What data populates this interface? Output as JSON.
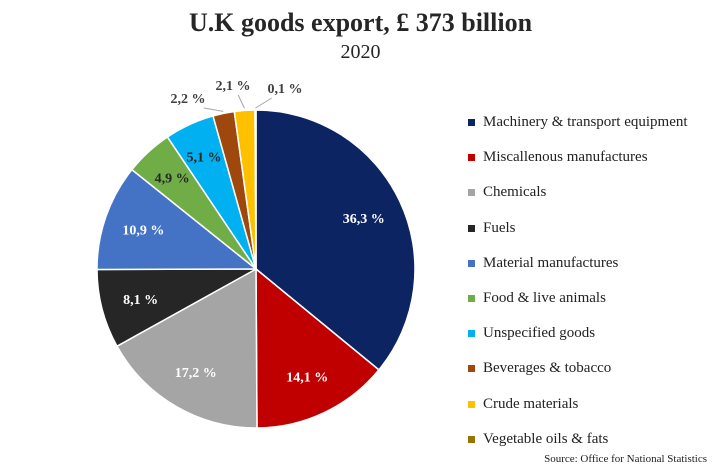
{
  "chart_data": {
    "type": "pie",
    "title": "U.K goods export, £ 373 billion",
    "subtitle": "2020",
    "source": "Source: Office for National Statistics",
    "slices": [
      {
        "label": "Machinery & transport equipment",
        "value": 36.3,
        "display": "36,3 %",
        "color": "#0d2463",
        "label_color": "#ffffff"
      },
      {
        "label": "Miscallenous manufactures",
        "value": 14.1,
        "display": "14,1 %",
        "color": "#c00000",
        "label_color": "#ffffff"
      },
      {
        "label": "Chemicals",
        "value": 17.2,
        "display": "17,2 %",
        "color": "#a5a5a5",
        "label_color": "#ffffff"
      },
      {
        "label": "Fuels",
        "value": 8.1,
        "display": "8,1 %",
        "color": "#262626",
        "label_color": "#ffffff"
      },
      {
        "label": "Material manufactures",
        "value": 10.9,
        "display": "10,9 %",
        "color": "#4472c4",
        "label_color": "#ffffff"
      },
      {
        "label": "Food & live animals",
        "value": 4.9,
        "display": "4,9 %",
        "color": "#70ad47",
        "label_color": "#262626"
      },
      {
        "label": "Unspecified goods",
        "value": 5.1,
        "display": "5,1 %",
        "color": "#00b0f0",
        "label_color": "#262626"
      },
      {
        "label": "Beverages & tobacco",
        "value": 2.2,
        "display": "2,2 %",
        "color": "#9e480e",
        "label_color": "#404040"
      },
      {
        "label": "Crude materials",
        "value": 2.1,
        "display": "2,1 %",
        "color": "#ffc000",
        "label_color": "#404040"
      },
      {
        "label": "Vegetable oils & fats",
        "value": 0.1,
        "display": "0,1 %",
        "color": "#997300",
        "label_color": "#404040"
      }
    ]
  }
}
